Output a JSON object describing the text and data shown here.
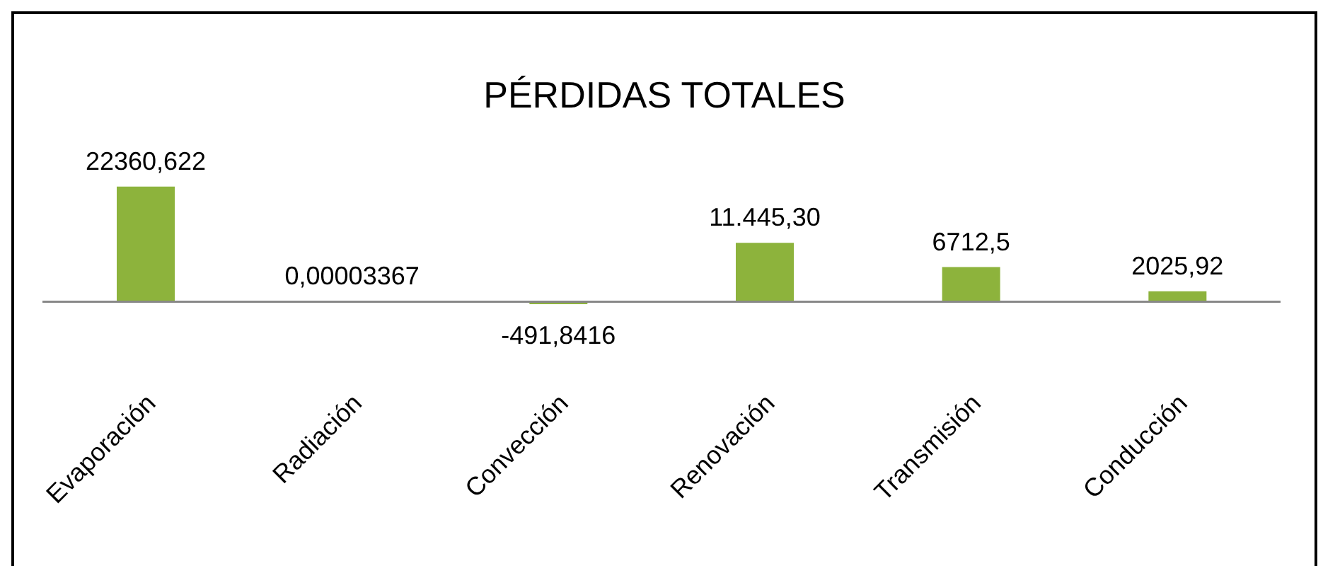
{
  "chart_data": {
    "type": "bar",
    "title": "PÉRDIDAS TOTALES",
    "categories": [
      "Evaporación",
      "Radiación",
      "Convección",
      "Renovación",
      "Transmisión",
      "Conducción"
    ],
    "values": [
      22360.622,
      3.367e-05,
      -491.8416,
      11445.3,
      6712.5,
      2025.92
    ],
    "value_labels": [
      "22360,622",
      "0,00003367",
      "-491,8416",
      "11.445,30",
      "6712,5",
      "2025,92"
    ],
    "color": "#8db33c"
  }
}
